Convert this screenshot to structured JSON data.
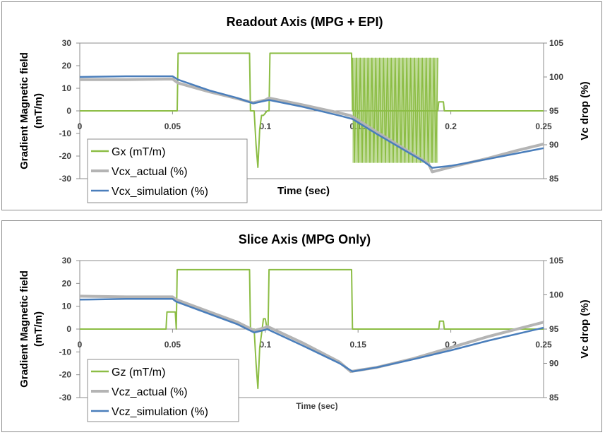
{
  "chart_data": [
    {
      "type": "line",
      "title": "Readout Axis (MPG + EPI)",
      "xlabel": "Time (sec)",
      "ylabel_left_line1": "Gradient Magnetic field",
      "ylabel_left_line2": "(mT/m)",
      "ylabel_right": "Vc drop (%)",
      "xlim": [
        0,
        0.25
      ],
      "ylim_left": [
        -30,
        30
      ],
      "ylim_right": [
        85,
        105
      ],
      "x_ticks": [
        "0",
        "0.05",
        "0.1",
        "0.15",
        "0.2",
        "0.25"
      ],
      "y_ticks_left": [
        "30",
        "20",
        "10",
        "0",
        "-10",
        "-20",
        "-30"
      ],
      "y_ticks_right": [
        "105",
        "100",
        "95",
        "90",
        "85"
      ],
      "legend_position": "bottom-left",
      "series": [
        {
          "name": "Gx (mT/m)",
          "axis": "left",
          "color": "#8cbd45",
          "x": [
            0,
            0.047,
            0.0475,
            0.0525,
            0.053,
            0.0915,
            0.092,
            0.094,
            0.095,
            0.096,
            0.097,
            0.098,
            0.099,
            0.1,
            0.101,
            0.102,
            0.1025,
            0.103,
            0.1465,
            0.147,
            0.1925,
            0.193,
            0.1935,
            0.194,
            0.196,
            0.1965,
            0.25
          ],
          "y": [
            0,
            0,
            0,
            0,
            25.5,
            25.5,
            0,
            0,
            -15,
            -25,
            -8,
            -2,
            -2,
            -1,
            0,
            0,
            25.5,
            25.5,
            25.5,
            0,
            0,
            0,
            4,
            4,
            4,
            0,
            0
          ],
          "epi": {
            "x_start": 0.147,
            "x_end": 0.193,
            "high": 23.5,
            "low": -23
          }
        },
        {
          "name": "Vcx_actual (%)",
          "axis": "right",
          "color": "#b4b4b4",
          "x": [
            0,
            0.025,
            0.05,
            0.053,
            0.07,
            0.085,
            0.0935,
            0.1,
            0.102,
            0.12,
            0.14,
            0.146,
            0.16,
            0.175,
            0.188,
            0.19,
            0.2,
            0.22,
            0.235,
            0.25
          ],
          "y": [
            99.6,
            99.6,
            99.7,
            99.1,
            97.8,
            96.8,
            96.2,
            96.6,
            96.9,
            95.9,
            94.7,
            94.3,
            91.9,
            89.4,
            87.2,
            86.0,
            86.7,
            88.0,
            89.1,
            90.1
          ]
        },
        {
          "name": "Vcx_simulation (%)",
          "axis": "right",
          "color": "#4a7ebb",
          "x": [
            0,
            0.025,
            0.05,
            0.053,
            0.07,
            0.085,
            0.0935,
            0.1,
            0.102,
            0.12,
            0.14,
            0.147,
            0.16,
            0.175,
            0.185,
            0.19,
            0.2,
            0.22,
            0.235,
            0.25
          ],
          "y": [
            100.0,
            100.1,
            100.1,
            99.6,
            98.0,
            96.9,
            96.1,
            96.5,
            96.6,
            95.6,
            94.3,
            93.8,
            91.6,
            89.2,
            87.6,
            86.6,
            86.9,
            87.9,
            88.7,
            89.5
          ]
        }
      ]
    },
    {
      "type": "line",
      "title": "Slice Axis (MPG Only)",
      "xlabel": "Time (sec)",
      "ylabel_left_line1": "Gradient Magnetic field",
      "ylabel_left_line2": "(mT/m)",
      "ylabel_right": "Vc drop (%)",
      "xlim": [
        0,
        0.25
      ],
      "ylim_left": [
        -30,
        30
      ],
      "ylim_right": [
        85,
        105
      ],
      "x_ticks": [
        "0",
        "0.05",
        "0.1",
        "0.15",
        "0.2",
        "0.25"
      ],
      "y_ticks_left": [
        "30",
        "20",
        "10",
        "0",
        "-10",
        "-20",
        "-30"
      ],
      "y_ticks_right": [
        "105",
        "100",
        "95",
        "90",
        "85"
      ],
      "legend_position": "bottom-left",
      "series": [
        {
          "name": "Gz (mT/m)",
          "axis": "left",
          "color": "#8cbd45",
          "x": [
            0,
            0.0465,
            0.047,
            0.0515,
            0.052,
            0.0525,
            0.0915,
            0.092,
            0.094,
            0.095,
            0.096,
            0.097,
            0.098,
            0.099,
            0.1,
            0.101,
            0.1015,
            0.102,
            0.1025,
            0.1465,
            0.147,
            0.1935,
            0.194,
            0.196,
            0.1965,
            0.25
          ],
          "y": [
            0,
            0,
            7.5,
            7.5,
            0,
            26,
            26,
            0,
            0,
            -15,
            -26,
            -8,
            -2,
            4.5,
            4.5,
            0,
            0,
            26,
            26,
            26,
            0,
            0,
            3.5,
            3.5,
            0,
            0
          ]
        },
        {
          "name": "Vcz_actual (%)",
          "axis": "right",
          "color": "#b4b4b4",
          "x": [
            0,
            0.025,
            0.05,
            0.052,
            0.07,
            0.085,
            0.094,
            0.1,
            0.101,
            0.12,
            0.14,
            0.146,
            0.16,
            0.18,
            0.2,
            0.22,
            0.25
          ],
          "y": [
            99.8,
            99.7,
            99.7,
            99.3,
            97.5,
            96.0,
            94.8,
            95.2,
            95.4,
            93.0,
            90.2,
            88.8,
            89.4,
            90.7,
            92.3,
            93.9,
            96.0
          ]
        },
        {
          "name": "Vcz_simulation (%)",
          "axis": "right",
          "color": "#4a7ebb",
          "x": [
            0,
            0.025,
            0.05,
            0.052,
            0.07,
            0.085,
            0.094,
            0.1,
            0.101,
            0.12,
            0.14,
            0.147,
            0.16,
            0.18,
            0.2,
            0.22,
            0.25
          ],
          "y": [
            99.3,
            99.4,
            99.4,
            99.0,
            97.2,
            95.7,
            94.5,
            94.9,
            95.0,
            92.6,
            90.0,
            88.8,
            89.4,
            90.6,
            91.9,
            93.3,
            95.2
          ]
        }
      ]
    }
  ]
}
